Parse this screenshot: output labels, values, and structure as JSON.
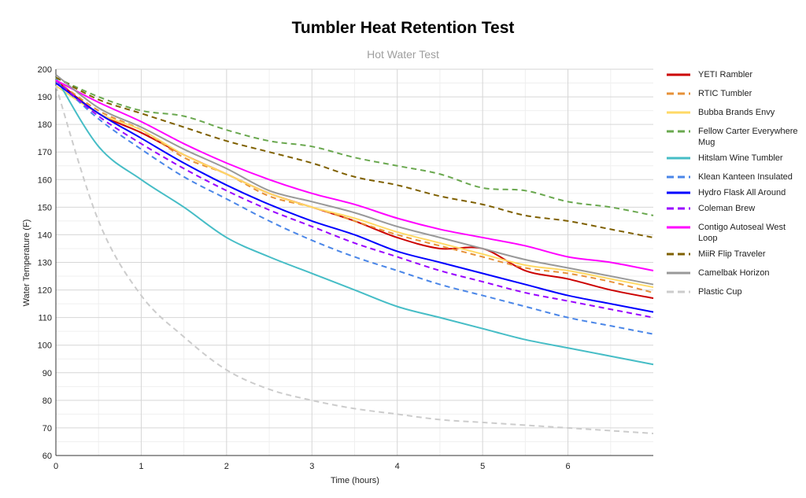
{
  "chart_data": {
    "type": "line",
    "title": "Tumbler Heat Retention Test",
    "subtitle": "Hot Water Test",
    "xlabel": "Time (hours)",
    "ylabel": "Water Temperature (F)",
    "xlim": [
      0,
      7
    ],
    "ylim": [
      60,
      200
    ],
    "x_ticks": [
      0,
      1,
      2,
      3,
      4,
      5,
      6
    ],
    "y_ticks": [
      60,
      70,
      80,
      90,
      100,
      110,
      120,
      130,
      140,
      150,
      160,
      170,
      180,
      190,
      200
    ],
    "grid": true,
    "legend_position": "right",
    "x": [
      0,
      0.5,
      1,
      1.5,
      2,
      2.5,
      3,
      3.5,
      4,
      4.5,
      5,
      5.5,
      6,
      6.5,
      7
    ],
    "series": [
      {
        "name": "YETI Rambler",
        "color": "#cc0000",
        "dashed": false,
        "values": [
          196,
          184,
          177,
          169,
          162,
          155,
          150,
          145,
          139,
          135,
          135,
          127,
          124,
          120,
          117
        ]
      },
      {
        "name": "RTIC Tumbler",
        "color": "#e69138",
        "dashed": true,
        "values": [
          196,
          185,
          178,
          168,
          162,
          154,
          150,
          145,
          140,
          136,
          132,
          128,
          126,
          123,
          119
        ]
      },
      {
        "name": "Bubba Brands Envy",
        "color": "#ffd966",
        "dashed": false,
        "values": [
          194,
          184,
          178,
          169,
          162,
          155,
          150,
          146,
          141,
          137,
          133,
          129,
          127,
          124,
          121
        ]
      },
      {
        "name": "Fellow Carter Everywhere Mug",
        "color": "#6aa84f",
        "dashed": true,
        "values": [
          197,
          190,
          185,
          183,
          178,
          174,
          172,
          168,
          165,
          162,
          157,
          156,
          152,
          150,
          147
        ]
      },
      {
        "name": "Hitslam Wine Tumbler",
        "color": "#46bdc6",
        "dashed": false,
        "values": [
          197,
          172,
          160,
          150,
          139,
          132,
          126,
          120,
          114,
          110,
          106,
          102,
          99,
          96,
          93
        ]
      },
      {
        "name": "Klean Kanteen Insulated",
        "color": "#4a86e8",
        "dashed": true,
        "values": [
          196,
          182,
          171,
          161,
          153,
          145,
          138,
          132,
          127,
          122,
          118,
          114,
          110,
          107,
          104
        ]
      },
      {
        "name": "Hydro Flask All Around",
        "color": "#0000ff",
        "dashed": false,
        "values": [
          195,
          184,
          175,
          166,
          158,
          151,
          145,
          140,
          134,
          130,
          126,
          122,
          118,
          115,
          112
        ]
      },
      {
        "name": "Coleman Brew",
        "color": "#9900ff",
        "dashed": true,
        "values": [
          196,
          183,
          173,
          164,
          156,
          149,
          143,
          137,
          132,
          127,
          123,
          119,
          116,
          113,
          110
        ]
      },
      {
        "name": "Contigo Autoseal West Loop",
        "color": "#ff00ff",
        "dashed": false,
        "values": [
          196,
          188,
          181,
          173,
          166,
          160,
          155,
          151,
          146,
          142,
          139,
          136,
          132,
          130,
          127
        ]
      },
      {
        "name": "MiiR Flip Traveler",
        "color": "#7f6000",
        "dashed": true,
        "values": [
          197,
          189,
          184,
          179,
          174,
          170,
          166,
          161,
          158,
          154,
          151,
          147,
          145,
          142,
          139
        ]
      },
      {
        "name": "Camelbak Horizon",
        "color": "#999999",
        "dashed": false,
        "values": [
          198,
          186,
          179,
          171,
          164,
          156,
          152,
          148,
          143,
          139,
          135,
          131,
          128,
          125,
          122
        ]
      },
      {
        "name": "Plastic Cup",
        "color": "#cccccc",
        "dashed": true,
        "values": [
          194,
          145,
          118,
          103,
          91,
          84,
          80,
          77,
          75,
          73,
          72,
          71,
          70,
          69,
          68
        ]
      }
    ]
  }
}
